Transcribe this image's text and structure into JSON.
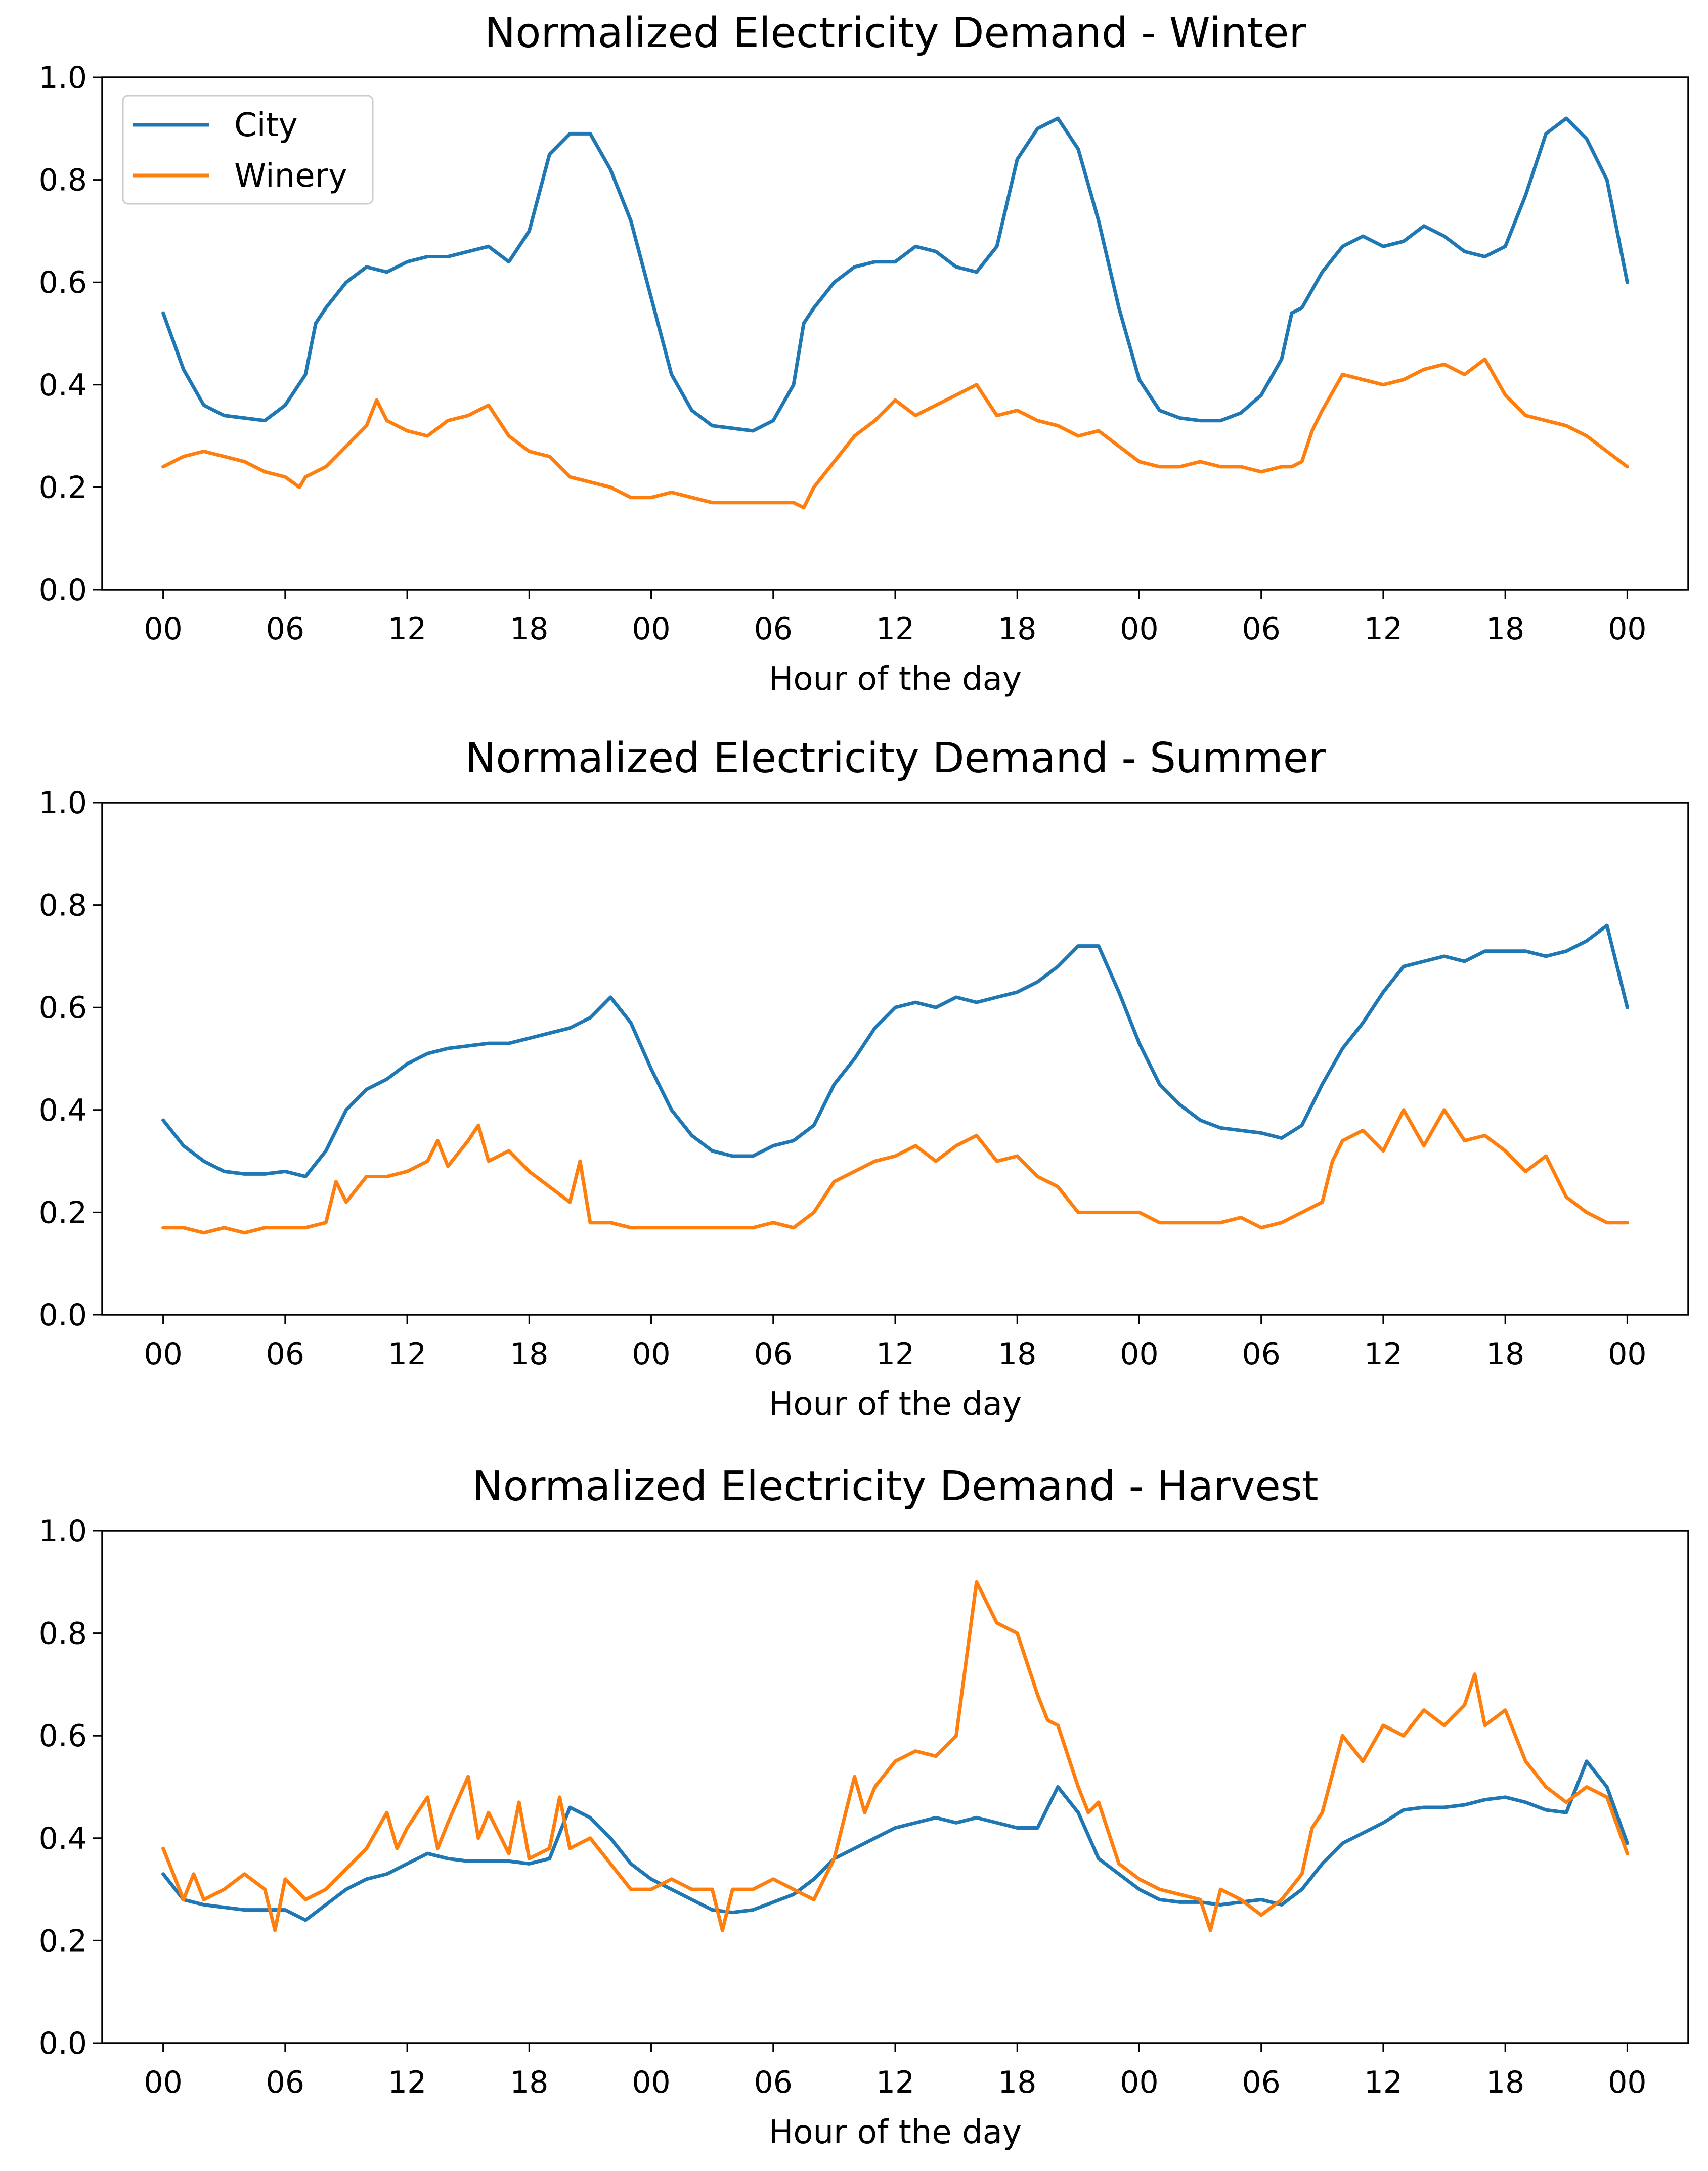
{
  "figure": {
    "x_tick_labels": [
      "00",
      "06",
      "12",
      "18",
      "00",
      "06",
      "12",
      "18",
      "00",
      "06",
      "12",
      "18",
      "00"
    ],
    "y_tick_labels": [
      "0.0",
      "0.2",
      "0.4",
      "0.6",
      "0.8",
      "1.0"
    ]
  },
  "chart_data": [
    {
      "type": "line",
      "title": "Normalized Electricity Demand - Winter",
      "xlabel": "Hour of the day",
      "ylabel": "",
      "xlim": [
        -3,
        75
      ],
      "ylim": [
        0,
        1
      ],
      "x_ticks": [
        0,
        6,
        12,
        18,
        24,
        30,
        36,
        42,
        48,
        54,
        60,
        66,
        72
      ],
      "y_ticks": [
        0,
        0.2,
        0.4,
        0.6,
        0.8,
        1.0
      ],
      "legend": {
        "position": "upper-left",
        "entries": [
          "City",
          "Winery"
        ]
      },
      "series": [
        {
          "name": "City",
          "color": "#1f77b4",
          "x": [
            0,
            1,
            2,
            3,
            4,
            5,
            6,
            7,
            7.5,
            8,
            9,
            10,
            11,
            12,
            13,
            14,
            15,
            16,
            17,
            18,
            19,
            20,
            21,
            22,
            23,
            24,
            25,
            26,
            27,
            28,
            29,
            30,
            31,
            31.5,
            32,
            33,
            34,
            35,
            36,
            37,
            38,
            39,
            40,
            41,
            42,
            43,
            44,
            45,
            46,
            47,
            48,
            49,
            50,
            51,
            52,
            53,
            54,
            55,
            55.5,
            56,
            57,
            58,
            59,
            60,
            61,
            62,
            63,
            64,
            65,
            66,
            67,
            68,
            69,
            70,
            71,
            72
          ],
          "y": [
            0.54,
            0.43,
            0.36,
            0.34,
            0.335,
            0.33,
            0.36,
            0.42,
            0.52,
            0.55,
            0.6,
            0.63,
            0.62,
            0.64,
            0.65,
            0.65,
            0.66,
            0.67,
            0.64,
            0.7,
            0.85,
            0.89,
            0.89,
            0.82,
            0.72,
            0.57,
            0.42,
            0.35,
            0.32,
            0.315,
            0.31,
            0.33,
            0.4,
            0.52,
            0.55,
            0.6,
            0.63,
            0.64,
            0.64,
            0.67,
            0.66,
            0.63,
            0.62,
            0.67,
            0.84,
            0.9,
            0.92,
            0.86,
            0.72,
            0.55,
            0.41,
            0.35,
            0.335,
            0.33,
            0.33,
            0.345,
            0.38,
            0.45,
            0.54,
            0.55,
            0.62,
            0.67,
            0.69,
            0.67,
            0.68,
            0.71,
            0.69,
            0.66,
            0.65,
            0.67,
            0.77,
            0.89,
            0.92,
            0.88,
            0.8,
            0.6
          ]
        },
        {
          "name": "Winery",
          "color": "#ff7f0e",
          "x": [
            0,
            1,
            2,
            3,
            4,
            5,
            6,
            6.7,
            7,
            8,
            9,
            10,
            10.5,
            11,
            12,
            13,
            14,
            15,
            16,
            17,
            18,
            19,
            20,
            21,
            22,
            23,
            24,
            25,
            26,
            27,
            28,
            29,
            30,
            31,
            31.5,
            32,
            33,
            34,
            35,
            36,
            37,
            38,
            39,
            40,
            41,
            42,
            43,
            44,
            45,
            46,
            47,
            48,
            49,
            50,
            51,
            52,
            53,
            54,
            55,
            55.5,
            56,
            56.5,
            57,
            58,
            59,
            60,
            61,
            62,
            63,
            64,
            65,
            66,
            67,
            68,
            69,
            70,
            71,
            72
          ],
          "y": [
            0.24,
            0.26,
            0.27,
            0.26,
            0.25,
            0.23,
            0.22,
            0.2,
            0.22,
            0.24,
            0.28,
            0.32,
            0.37,
            0.33,
            0.31,
            0.3,
            0.33,
            0.34,
            0.36,
            0.3,
            0.27,
            0.26,
            0.22,
            0.21,
            0.2,
            0.18,
            0.18,
            0.19,
            0.18,
            0.17,
            0.17,
            0.17,
            0.17,
            0.17,
            0.16,
            0.2,
            0.25,
            0.3,
            0.33,
            0.37,
            0.34,
            0.36,
            0.38,
            0.4,
            0.34,
            0.35,
            0.33,
            0.32,
            0.3,
            0.31,
            0.28,
            0.25,
            0.24,
            0.24,
            0.25,
            0.24,
            0.24,
            0.23,
            0.24,
            0.24,
            0.25,
            0.31,
            0.35,
            0.42,
            0.41,
            0.4,
            0.41,
            0.43,
            0.44,
            0.42,
            0.45,
            0.38,
            0.34,
            0.33,
            0.32,
            0.3,
            0.27,
            0.24
          ]
        }
      ]
    },
    {
      "type": "line",
      "title": "Normalized Electricity Demand - Summer",
      "xlabel": "Hour of the day",
      "ylabel": "",
      "xlim": [
        -3,
        75
      ],
      "ylim": [
        0,
        1
      ],
      "x_ticks": [
        0,
        6,
        12,
        18,
        24,
        30,
        36,
        42,
        48,
        54,
        60,
        66,
        72
      ],
      "y_ticks": [
        0,
        0.2,
        0.4,
        0.6,
        0.8,
        1.0
      ],
      "series": [
        {
          "name": "City",
          "color": "#1f77b4",
          "x": [
            0,
            1,
            2,
            3,
            4,
            5,
            6,
            7,
            8,
            9,
            10,
            11,
            12,
            13,
            14,
            15,
            16,
            17,
            18,
            19,
            20,
            21,
            22,
            23,
            24,
            25,
            26,
            27,
            28,
            29,
            30,
            31,
            32,
            33,
            34,
            35,
            36,
            37,
            38,
            39,
            40,
            41,
            42,
            43,
            44,
            45,
            46,
            47,
            48,
            49,
            50,
            51,
            52,
            53,
            54,
            55,
            56,
            57,
            58,
            59,
            60,
            61,
            62,
            63,
            64,
            65,
            66,
            67,
            68,
            69,
            70,
            71,
            72
          ],
          "y": [
            0.38,
            0.33,
            0.3,
            0.28,
            0.275,
            0.275,
            0.28,
            0.27,
            0.32,
            0.4,
            0.44,
            0.46,
            0.49,
            0.51,
            0.52,
            0.525,
            0.53,
            0.53,
            0.54,
            0.55,
            0.56,
            0.58,
            0.62,
            0.57,
            0.48,
            0.4,
            0.35,
            0.32,
            0.31,
            0.31,
            0.33,
            0.34,
            0.37,
            0.45,
            0.5,
            0.56,
            0.6,
            0.61,
            0.6,
            0.62,
            0.61,
            0.62,
            0.63,
            0.65,
            0.68,
            0.72,
            0.72,
            0.63,
            0.53,
            0.45,
            0.41,
            0.38,
            0.365,
            0.36,
            0.355,
            0.345,
            0.37,
            0.45,
            0.52,
            0.57,
            0.63,
            0.68,
            0.69,
            0.7,
            0.69,
            0.71,
            0.71,
            0.71,
            0.7,
            0.71,
            0.73,
            0.76,
            0.6
          ]
        },
        {
          "name": "Winery",
          "color": "#ff7f0e",
          "x": [
            0,
            1,
            2,
            3,
            4,
            5,
            6,
            7,
            8,
            8.5,
            9,
            10,
            11,
            12,
            13,
            13.5,
            14,
            15,
            15.5,
            16,
            17,
            18,
            19,
            20,
            20.5,
            21,
            22,
            23,
            24,
            25,
            26,
            27,
            28,
            29,
            30,
            31,
            32,
            33,
            34,
            35,
            36,
            37,
            38,
            39,
            40,
            41,
            42,
            43,
            44,
            45,
            46,
            47,
            48,
            49,
            50,
            51,
            52,
            53,
            54,
            55,
            56,
            57,
            57.5,
            58,
            59,
            60,
            61,
            62,
            63,
            64,
            65,
            66,
            67,
            68,
            69,
            70,
            71,
            72
          ],
          "y": [
            0.17,
            0.17,
            0.16,
            0.17,
            0.16,
            0.17,
            0.17,
            0.17,
            0.18,
            0.26,
            0.22,
            0.27,
            0.27,
            0.28,
            0.3,
            0.34,
            0.29,
            0.34,
            0.37,
            0.3,
            0.32,
            0.28,
            0.25,
            0.22,
            0.3,
            0.18,
            0.18,
            0.17,
            0.17,
            0.17,
            0.17,
            0.17,
            0.17,
            0.17,
            0.18,
            0.17,
            0.2,
            0.26,
            0.28,
            0.3,
            0.31,
            0.33,
            0.3,
            0.33,
            0.35,
            0.3,
            0.31,
            0.27,
            0.25,
            0.2,
            0.2,
            0.2,
            0.2,
            0.18,
            0.18,
            0.18,
            0.18,
            0.19,
            0.17,
            0.18,
            0.2,
            0.22,
            0.3,
            0.34,
            0.36,
            0.32,
            0.4,
            0.33,
            0.4,
            0.34,
            0.35,
            0.32,
            0.28,
            0.31,
            0.23,
            0.2,
            0.18,
            0.18
          ]
        }
      ]
    },
    {
      "type": "line",
      "title": "Normalized Electricity Demand - Harvest",
      "xlabel": "Hour of the day",
      "ylabel": "",
      "xlim": [
        -3,
        75
      ],
      "ylim": [
        0,
        1
      ],
      "x_ticks": [
        0,
        6,
        12,
        18,
        24,
        30,
        36,
        42,
        48,
        54,
        60,
        66,
        72
      ],
      "y_ticks": [
        0,
        0.2,
        0.4,
        0.6,
        0.8,
        1.0
      ],
      "series": [
        {
          "name": "City",
          "color": "#1f77b4",
          "x": [
            0,
            1,
            2,
            3,
            4,
            5,
            6,
            7,
            8,
            9,
            10,
            11,
            12,
            13,
            14,
            15,
            16,
            17,
            18,
            19,
            20,
            21,
            22,
            23,
            24,
            25,
            26,
            27,
            28,
            29,
            30,
            31,
            32,
            33,
            34,
            35,
            36,
            37,
            38,
            39,
            40,
            41,
            42,
            43,
            44,
            45,
            46,
            47,
            48,
            49,
            50,
            51,
            52,
            53,
            54,
            55,
            56,
            57,
            58,
            59,
            60,
            61,
            62,
            63,
            64,
            65,
            66,
            67,
            68,
            69,
            70,
            71,
            72
          ],
          "y": [
            0.33,
            0.28,
            0.27,
            0.265,
            0.26,
            0.26,
            0.26,
            0.24,
            0.27,
            0.3,
            0.32,
            0.33,
            0.35,
            0.37,
            0.36,
            0.355,
            0.355,
            0.355,
            0.35,
            0.36,
            0.46,
            0.44,
            0.4,
            0.35,
            0.32,
            0.3,
            0.28,
            0.26,
            0.255,
            0.26,
            0.275,
            0.29,
            0.32,
            0.36,
            0.38,
            0.4,
            0.42,
            0.43,
            0.44,
            0.43,
            0.44,
            0.43,
            0.42,
            0.42,
            0.5,
            0.45,
            0.36,
            0.33,
            0.3,
            0.28,
            0.275,
            0.275,
            0.27,
            0.275,
            0.28,
            0.27,
            0.3,
            0.35,
            0.39,
            0.41,
            0.43,
            0.455,
            0.46,
            0.46,
            0.465,
            0.475,
            0.48,
            0.47,
            0.455,
            0.45,
            0.55,
            0.5,
            0.39
          ]
        },
        {
          "name": "Winery",
          "color": "#ff7f0e",
          "x": [
            0,
            0.5,
            1,
            1.5,
            2,
            3,
            4,
            5,
            5.5,
            6,
            7,
            8,
            9,
            10,
            11,
            11.5,
            12,
            13,
            13.5,
            14,
            15,
            15.5,
            16,
            17,
            17.5,
            18,
            19,
            19.5,
            20,
            21,
            22,
            23,
            24,
            25,
            26,
            27,
            27.5,
            28,
            29,
            30,
            31,
            32,
            32.5,
            33,
            34,
            34.5,
            35,
            36,
            37,
            38,
            39,
            40,
            41,
            42,
            43,
            43.5,
            44,
            45,
            45.5,
            46,
            47,
            48,
            49,
            50,
            51,
            51.5,
            52,
            53,
            54,
            55,
            56,
            56.5,
            57,
            58,
            59,
            60,
            61,
            62,
            63,
            64,
            64.5,
            65,
            66,
            67,
            68,
            69,
            70,
            71,
            72
          ],
          "y": [
            0.38,
            0.33,
            0.28,
            0.33,
            0.28,
            0.3,
            0.33,
            0.3,
            0.22,
            0.32,
            0.28,
            0.3,
            0.34,
            0.38,
            0.45,
            0.38,
            0.42,
            0.48,
            0.38,
            0.43,
            0.52,
            0.4,
            0.45,
            0.37,
            0.47,
            0.36,
            0.38,
            0.48,
            0.38,
            0.4,
            0.35,
            0.3,
            0.3,
            0.32,
            0.3,
            0.3,
            0.22,
            0.3,
            0.3,
            0.32,
            0.3,
            0.28,
            0.32,
            0.36,
            0.52,
            0.45,
            0.5,
            0.55,
            0.57,
            0.56,
            0.6,
            0.9,
            0.82,
            0.8,
            0.68,
            0.63,
            0.62,
            0.5,
            0.45,
            0.47,
            0.35,
            0.32,
            0.3,
            0.29,
            0.28,
            0.22,
            0.3,
            0.28,
            0.25,
            0.28,
            0.33,
            0.42,
            0.45,
            0.6,
            0.55,
            0.62,
            0.6,
            0.65,
            0.62,
            0.66,
            0.72,
            0.62,
            0.65,
            0.55,
            0.5,
            0.47,
            0.5,
            0.48,
            0.37
          ]
        }
      ]
    }
  ]
}
